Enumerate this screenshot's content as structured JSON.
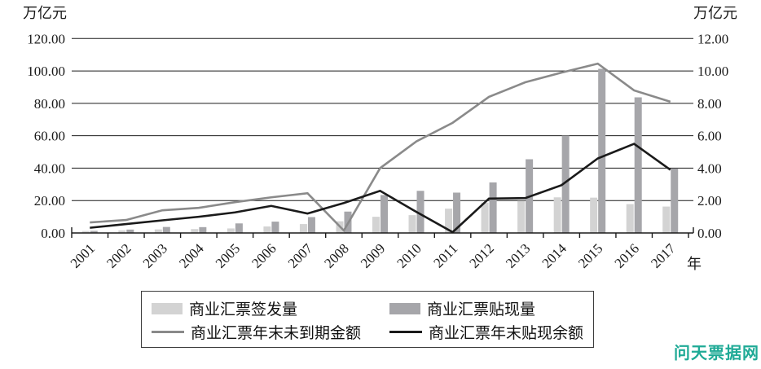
{
  "units": {
    "left": "万亿元",
    "right": "万亿元",
    "x": "年"
  },
  "axes": {
    "left_ticks": [
      "0.00",
      "20.00",
      "40.00",
      "60.00",
      "80.00",
      "100.00",
      "120.00"
    ],
    "right_ticks": [
      "0.00",
      "2.00",
      "4.00",
      "6.00",
      "8.00",
      "10.00",
      "12.00"
    ]
  },
  "chart_data": {
    "type": "bar+line combo",
    "title": "",
    "xlabel": "年",
    "left_axis_label": "万亿元",
    "right_axis_label": "万亿元",
    "left_ylim": [
      0,
      120
    ],
    "right_ylim": [
      0,
      12
    ],
    "grid": true,
    "legend_position": "bottom",
    "categories": [
      "2001",
      "2002",
      "2003",
      "2004",
      "2005",
      "2006",
      "2007",
      "2008",
      "2009",
      "2010",
      "2011",
      "2012",
      "2013",
      "2014",
      "2015",
      "2016",
      "2017"
    ],
    "series": [
      {
        "name": "商业汇票签发量",
        "type": "bar",
        "axis": "left",
        "color": "#d3d3d3",
        "values": [
          1.2,
          1.6,
          2.2,
          2.4,
          2.8,
          4.0,
          5.5,
          7.2,
          10.0,
          11.0,
          15.0,
          18.7,
          19.8,
          22.0,
          21.8,
          17.8,
          16.3
        ]
      },
      {
        "name": "商业汇票贴现量",
        "type": "bar",
        "axis": "left",
        "color": "#a6a6aa",
        "values": [
          1.3,
          2.1,
          3.7,
          3.6,
          5.9,
          7.0,
          9.8,
          13.2,
          23.4,
          26.0,
          24.9,
          31.2,
          45.5,
          60.0,
          101.3,
          83.7,
          39.8
        ]
      },
      {
        "name": "商业汇票年末未到期金额",
        "type": "line",
        "axis": "right",
        "color": "#8a8a8a",
        "values": [
          0.65,
          0.8,
          1.4,
          1.55,
          1.9,
          2.2,
          2.45,
          0.15,
          4.0,
          5.65,
          6.8,
          8.4,
          9.3,
          9.9,
          10.45,
          8.8,
          8.1
        ]
      },
      {
        "name": "商业汇票年末贴现余额",
        "type": "line",
        "axis": "right",
        "color": "#1a1a1a",
        "values": [
          0.32,
          0.55,
          0.78,
          1.0,
          1.27,
          1.67,
          1.2,
          1.85,
          2.6,
          1.3,
          0.05,
          2.12,
          2.15,
          2.95,
          4.6,
          5.5,
          3.9
        ]
      }
    ]
  },
  "watermark": {
    "text": "问天票据网",
    "color": "#1faa96"
  }
}
